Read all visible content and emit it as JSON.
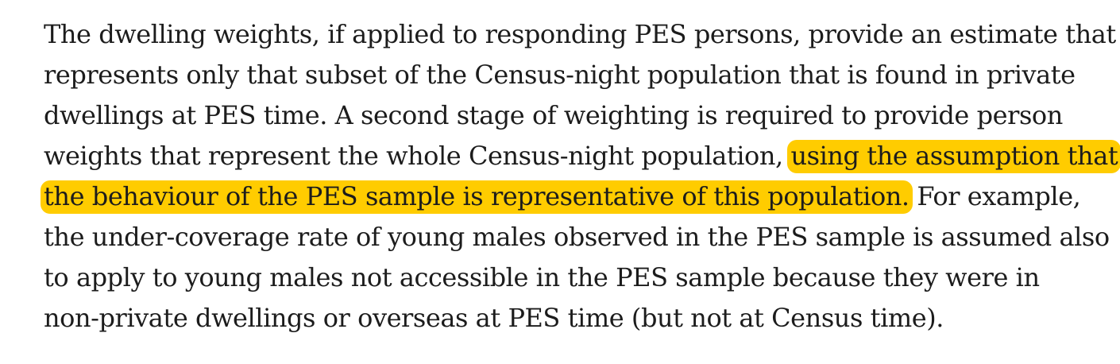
{
  "paragraph": {
    "lines": [
      "The dwelling weights, if applied to responding PES persons, provide an estimate that",
      "represents only that subset of the Census-night population that is found in private",
      "dwellings at PES time.  A second stage of weighting is required to provide person"
    ],
    "line4_plain": "weights that represent the whole Census-night population, ",
    "highlight_part1": "using the assumption that",
    "highlight_part2": "the behaviour of the PES sample is representative of this population.",
    "line5_plain": " For example,",
    "lines_after": [
      "the under-coverage rate of young males observed in the PES sample is assumed also",
      "to apply to young males not accessible in the PES sample because they were in",
      "non-private dwellings or overseas at PES time (but not at Census time)."
    ]
  },
  "colors": {
    "highlight": "#ffcc00",
    "text": "#1c1c1c",
    "background": "#ffffff"
  }
}
